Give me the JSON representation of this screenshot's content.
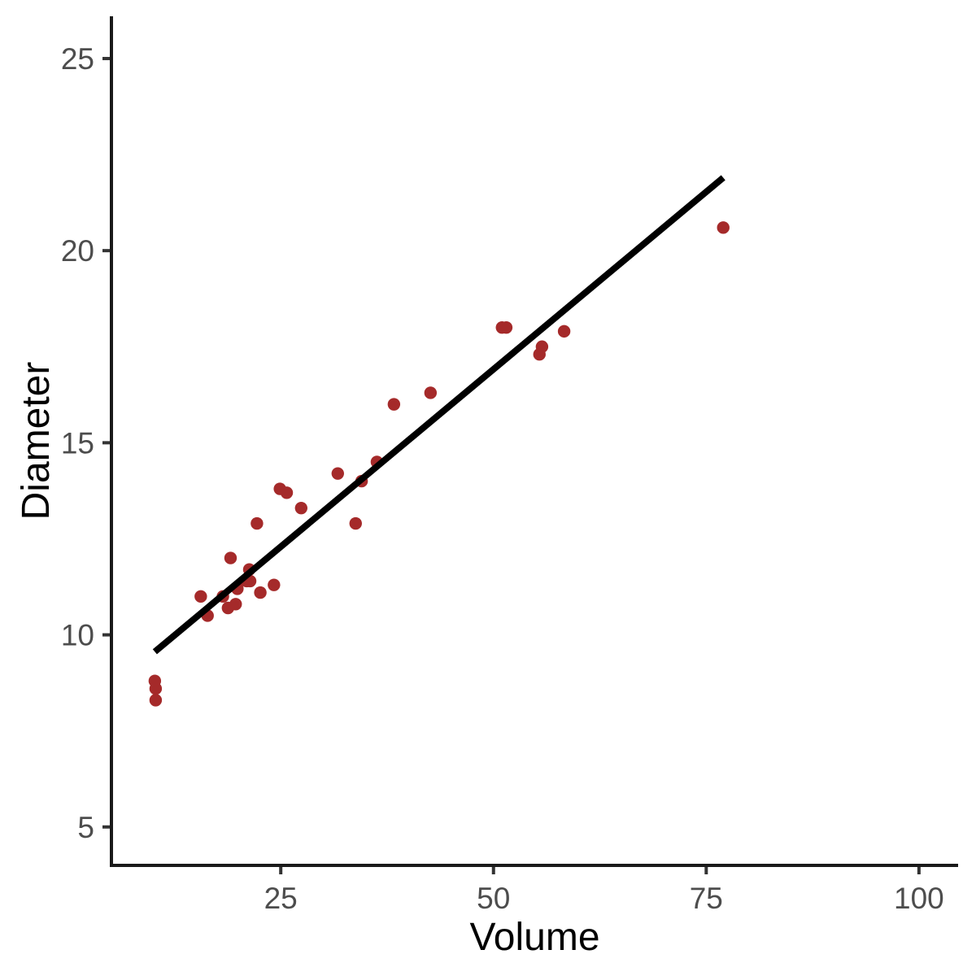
{
  "figure": {
    "background_color": "#FFFFFF"
  },
  "chart_data": {
    "type": "scatter",
    "title": "",
    "xlabel": "Volume",
    "ylabel": "Diameter",
    "x_ticks": [
      25,
      50,
      75,
      100
    ],
    "y_ticks": [
      5,
      10,
      15,
      20,
      25
    ],
    "x_range": [
      5.1,
      104.6
    ],
    "y_range": [
      4.0,
      26.1
    ],
    "grid": false,
    "legend": "none",
    "colors": {
      "point": "#A52A2A",
      "trend_line": "#000000",
      "axis_line": "#1A1A1A",
      "tick_mark": "#333333",
      "tick_label": "#4D4D4D",
      "axis_title": "#000000",
      "background": "#FFFFFF"
    },
    "points": [
      [
        10.3,
        8.3
      ],
      [
        10.3,
        8.6
      ],
      [
        10.2,
        8.8
      ],
      [
        16.4,
        10.5
      ],
      [
        18.8,
        10.7
      ],
      [
        19.7,
        10.8
      ],
      [
        15.6,
        11.0
      ],
      [
        18.2,
        11.0
      ],
      [
        22.6,
        11.1
      ],
      [
        19.9,
        11.2
      ],
      [
        24.2,
        11.3
      ],
      [
        21.0,
        11.4
      ],
      [
        21.4,
        11.4
      ],
      [
        21.3,
        11.7
      ],
      [
        19.1,
        12.0
      ],
      [
        22.2,
        12.9
      ],
      [
        33.8,
        12.9
      ],
      [
        27.4,
        13.3
      ],
      [
        25.7,
        13.7
      ],
      [
        24.9,
        13.8
      ],
      [
        34.5,
        14.0
      ],
      [
        31.7,
        14.2
      ],
      [
        36.3,
        14.5
      ],
      [
        38.3,
        16.0
      ],
      [
        42.6,
        16.3
      ],
      [
        55.4,
        17.3
      ],
      [
        55.7,
        17.5
      ],
      [
        58.3,
        17.9
      ],
      [
        51.5,
        18.0
      ],
      [
        51.0,
        18.0
      ],
      [
        77.0,
        20.6
      ]
    ],
    "trend_line": {
      "fit": "linear",
      "x1": 10.2,
      "y1": 9.56,
      "x2": 77.0,
      "y2": 21.9
    }
  }
}
